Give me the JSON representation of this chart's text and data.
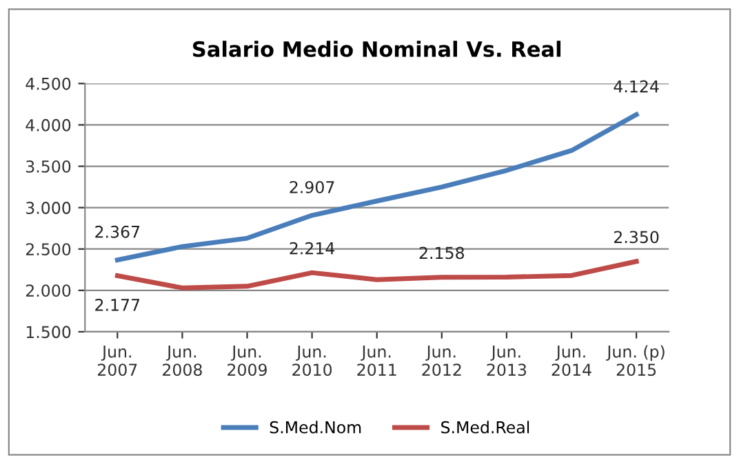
{
  "chart_data": {
    "type": "line",
    "title": "Salario Medio Nominal Vs. Real",
    "categories": [
      "Jun.\n2007",
      "Jun.\n2008",
      "Jun.\n2009",
      "Jun.\n2010",
      "Jun.\n2011",
      "Jun.\n2012",
      "Jun.\n2013",
      "Jun.\n2014",
      "Jun. (p)\n2015"
    ],
    "series": [
      {
        "name": "S.Med.Nom",
        "color": "#4a7ebb",
        "values": [
          2367,
          2530,
          2630,
          2907,
          3080,
          3250,
          3450,
          3690,
          4124
        ],
        "value_labels": [
          "2.367",
          null,
          null,
          "2.907",
          null,
          null,
          null,
          null,
          "4.124"
        ]
      },
      {
        "name": "S.Med.Real",
        "color": "#be4b48",
        "values": [
          2177,
          2030,
          2050,
          2214,
          2130,
          2158,
          2160,
          2180,
          2350
        ],
        "value_labels": [
          "2.177",
          null,
          null,
          "2.214",
          null,
          "2.158",
          null,
          null,
          "2.350"
        ]
      }
    ],
    "ylim": [
      1500,
      4500
    ],
    "yticks": [
      {
        "value": 1500,
        "label": "1.500"
      },
      {
        "value": 2000,
        "label": "2.000"
      },
      {
        "value": 2500,
        "label": "2.500"
      },
      {
        "value": 3000,
        "label": "3.000"
      },
      {
        "value": 3500,
        "label": "3.500"
      },
      {
        "value": 4000,
        "label": "4.000"
      },
      {
        "value": 4500,
        "label": "4.500"
      }
    ],
    "grid": "y",
    "legend": "bottom",
    "marker": "none",
    "line_style": "solid"
  }
}
